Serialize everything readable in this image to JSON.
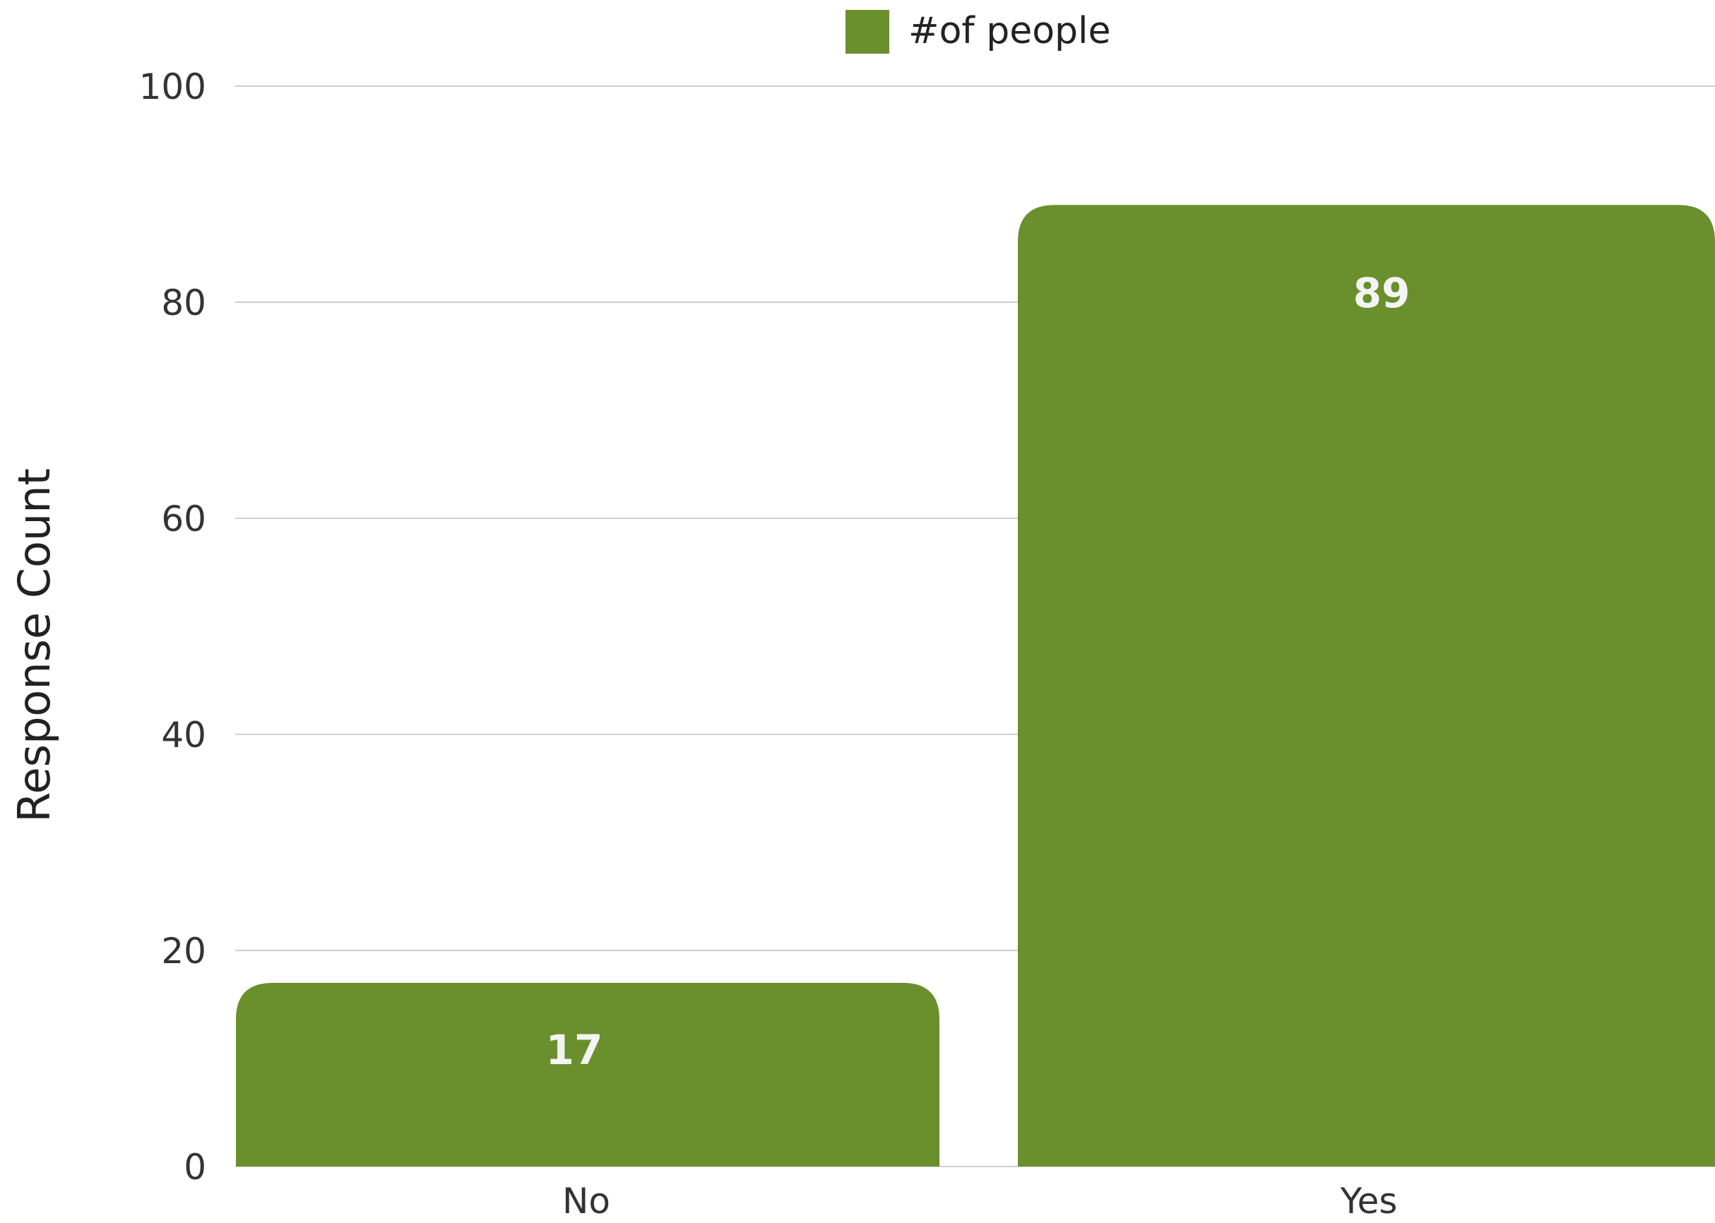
{
  "chart_data": {
    "type": "bar",
    "categories": [
      "No",
      "Yes"
    ],
    "series": [
      {
        "name": "#of people",
        "values": [
          17,
          89
        ],
        "color": "#6a8f2d"
      }
    ],
    "title": "",
    "xlabel": "",
    "ylabel": "Response Count",
    "ylim": [
      0,
      100
    ],
    "y_ticks": [
      0,
      20,
      40,
      60,
      80,
      100
    ],
    "grid": true,
    "legend_position": "top-center",
    "data_labels": true
  }
}
